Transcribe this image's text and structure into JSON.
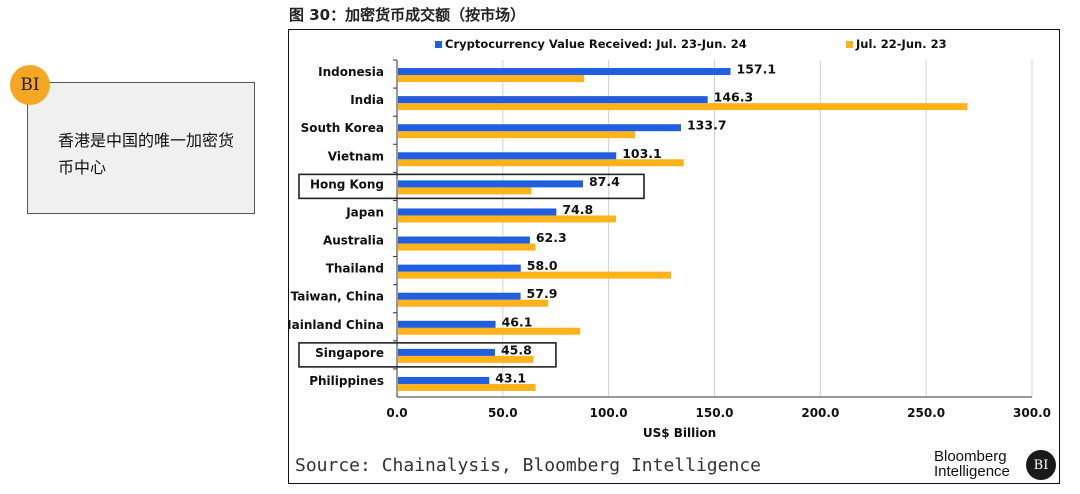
{
  "figure_title": "图 30：加密货币成交额（按市场）",
  "note": {
    "badge": "BI",
    "text": "香港是中国的唯一加密货币中心"
  },
  "source": "Source: Chainalysis, Bloomberg Intelligence",
  "logo": {
    "line1": "Bloomberg",
    "line2": "Intelligence",
    "badge": "BI"
  },
  "chart_data": {
    "type": "bar",
    "orientation": "horizontal",
    "categories": [
      "Indonesia",
      "India",
      "South Korea",
      "Vietnam",
      "Hong Kong",
      "Japan",
      "Australia",
      "Thailand",
      "Taiwan, China",
      "Mainland China",
      "Singapore",
      "Philippines"
    ],
    "series": [
      {
        "name": "Cryptocurrency Value Received: Jul. 23-Jun. 24",
        "color": "#1f5fe0",
        "values": [
          157.1,
          146.3,
          133.7,
          103.1,
          87.4,
          74.8,
          62.3,
          58.0,
          57.9,
          46.1,
          45.8,
          43.1
        ]
      },
      {
        "name": "Jul. 22-Jun. 23",
        "color": "#ffb21a",
        "values": [
          88,
          269,
          112,
          135,
          63,
          103,
          65,
          129,
          71,
          86,
          64,
          65
        ]
      }
    ],
    "data_labels": [
      "157.1",
      "146.3",
      "133.7",
      "103.1",
      "87.4",
      "74.8",
      "62.3",
      "58.0",
      "57.9",
      "46.1",
      "45.8",
      "43.1"
    ],
    "highlighted_categories": [
      "Hong Kong",
      "Singapore"
    ],
    "xlabel": "US$ Billion",
    "xlim": [
      0,
      300
    ],
    "xticks": [
      "0.0",
      "50.0",
      "100.0",
      "150.0",
      "200.0",
      "250.0",
      "300.0"
    ],
    "grid": "vertical",
    "legend_position": "top"
  }
}
